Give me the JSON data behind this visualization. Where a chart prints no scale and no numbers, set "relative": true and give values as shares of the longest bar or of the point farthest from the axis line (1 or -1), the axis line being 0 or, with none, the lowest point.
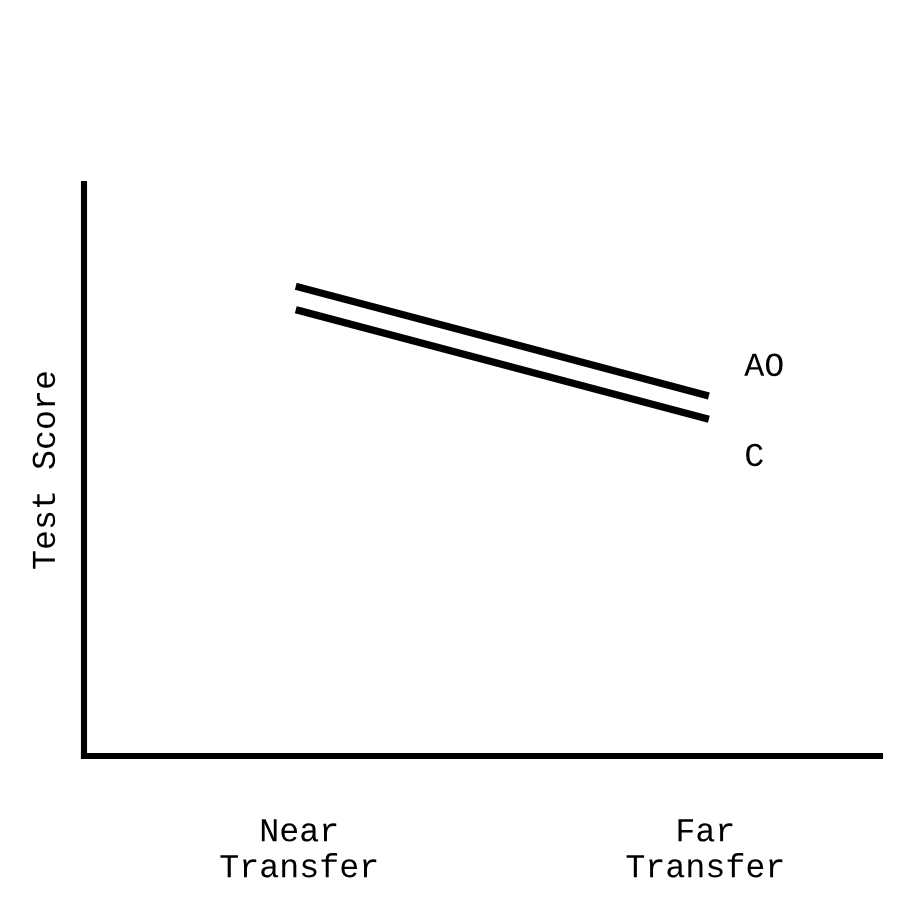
{
  "chart_data": {
    "type": "line",
    "ylabel": "Test Score",
    "categories": [
      "Near\nTransfer",
      "Far\nTransfer"
    ],
    "relative": true,
    "legend": false,
    "grid": false,
    "marker": "none",
    "line_style": "solid",
    "series": [
      {
        "name": "AO",
        "color": "#000000",
        "values": [
          1,
          0.77
        ]
      },
      {
        "name": "C",
        "color": "#000000",
        "values": [
          0.95,
          0.72
        ]
      }
    ]
  }
}
